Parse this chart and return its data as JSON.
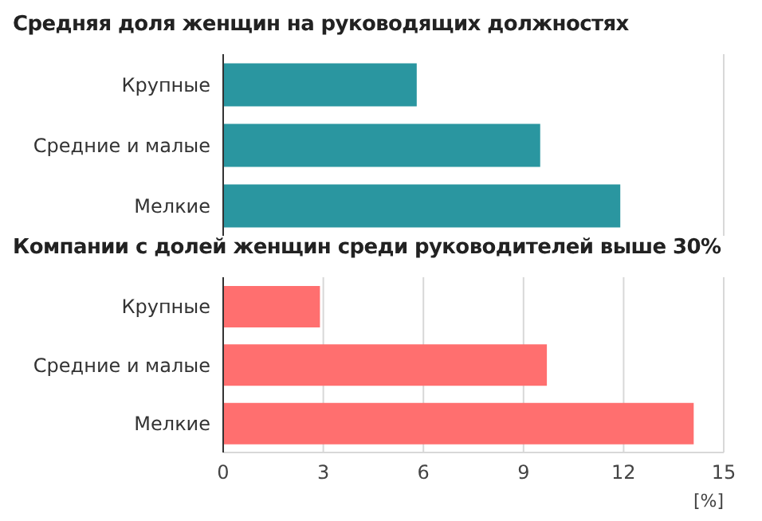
{
  "chart_data": [
    {
      "type": "bar",
      "orientation": "horizontal",
      "title": "Средняя доля женщин на руководящих должностях",
      "categories": [
        "Крупные",
        "Средние и малые",
        "Мелкие"
      ],
      "values": [
        5.8,
        9.5,
        11.9
      ],
      "color": "#2a96a0",
      "xlim": [
        0,
        15
      ],
      "xticks": [
        0,
        3,
        6,
        9,
        12,
        15
      ],
      "grid": "x",
      "tick_labels": "y"
    },
    {
      "type": "bar",
      "orientation": "horizontal",
      "title": "Компании с долей женщин среди руководителей выше 30%",
      "categories": [
        "Крупные",
        "Средние и малые",
        "Мелкие"
      ],
      "values": [
        2.9,
        9.7,
        14.1
      ],
      "color": "#ff6f6f",
      "xlim": [
        0,
        15
      ],
      "xticks": [
        0,
        3,
        6,
        9,
        12,
        15
      ],
      "xlabel": "[%]",
      "grid": "x"
    }
  ]
}
